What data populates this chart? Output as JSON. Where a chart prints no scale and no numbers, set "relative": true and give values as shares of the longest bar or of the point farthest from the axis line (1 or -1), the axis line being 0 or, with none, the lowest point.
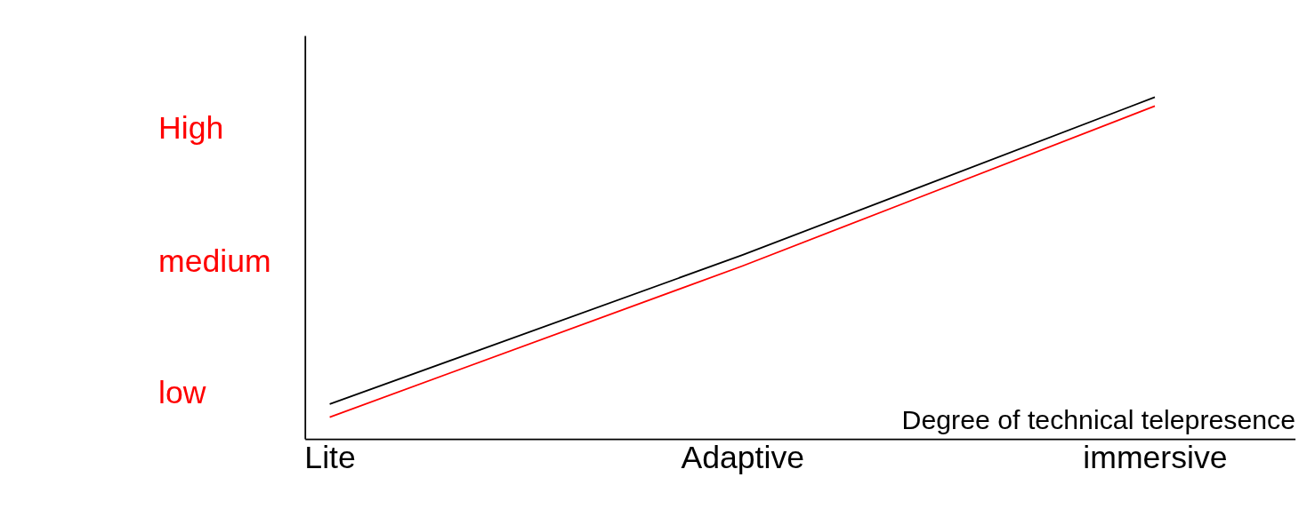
{
  "chart_data": {
    "type": "line",
    "xlabel": "Degree of technical telepresence",
    "categories": [
      "Lite",
      "Adaptive",
      "immersive"
    ],
    "relative": true,
    "annotations": [
      "low",
      "medium",
      "High"
    ],
    "series": [
      {
        "color": "#000000",
        "values": [
          0.102,
          0.538,
          1.0
        ]
      },
      {
        "color": "#ff0000",
        "values": [
          0.064,
          0.506,
          0.974
        ]
      }
    ],
    "grid": false,
    "marker": "none",
    "line_style": "solid"
  }
}
